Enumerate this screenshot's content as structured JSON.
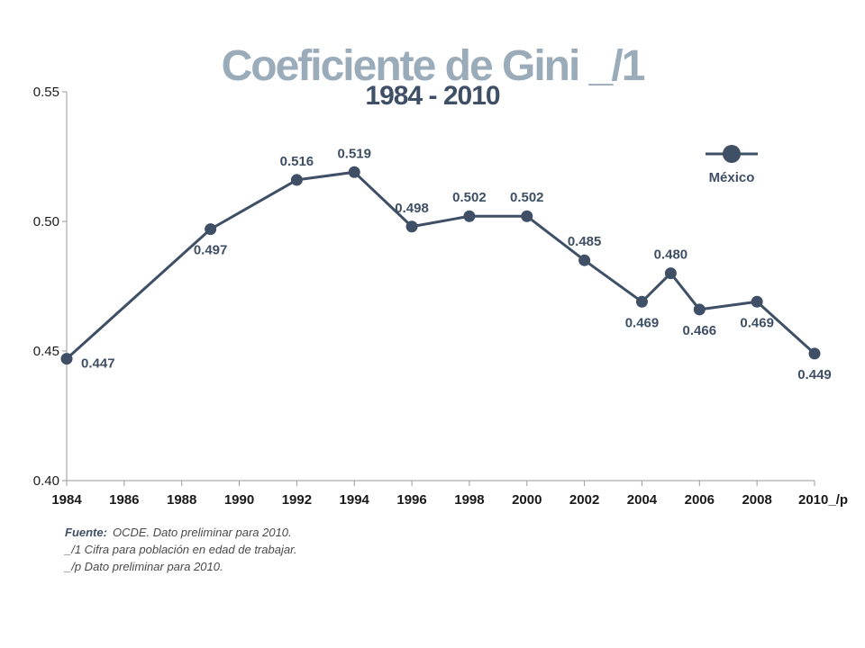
{
  "title": "Coeficiente de Gini _/1",
  "subtitle": "1984 - 2010",
  "chart_data": {
    "type": "line",
    "title": "Coeficiente de Gini _/1",
    "subtitle": "1984 - 2010",
    "xlabel": "",
    "ylabel": "",
    "xlim": [
      1984,
      2010
    ],
    "ylim": [
      0.4,
      0.55
    ],
    "x_ticks": [
      "1984",
      "1986",
      "1988",
      "1990",
      "1992",
      "1994",
      "1996",
      "1998",
      "2000",
      "2002",
      "2004",
      "2006",
      "2008",
      "2010_/p"
    ],
    "y_ticks": [
      "0.40",
      "0.45",
      "0.50",
      "0.55"
    ],
    "grid": false,
    "legend_position": "top-right",
    "series": [
      {
        "name": "México",
        "color": "#3e4f66",
        "x": [
          1984,
          1989,
          1992,
          1994,
          1996,
          1998,
          2000,
          2002,
          2004,
          2005,
          2006,
          2008,
          2010
        ],
        "y": [
          0.447,
          0.497,
          0.516,
          0.519,
          0.498,
          0.502,
          0.502,
          0.485,
          0.469,
          0.48,
          0.466,
          0.469,
          0.449
        ],
        "labels": [
          "0.447",
          "0.497",
          "0.516",
          "0.519",
          "0.498",
          "0.502",
          "0.502",
          "0.485",
          "0.469",
          "0.480",
          "0.466",
          "0.469",
          "0.449"
        ]
      }
    ]
  },
  "notes": {
    "fuente_label": "Fuente:",
    "fuente_text": "OCDE. Dato preliminar para 2010.",
    "note1": "_/1 Cifra para población en edad de trabajar.",
    "note2": "_/p Dato preliminar para 2010."
  }
}
